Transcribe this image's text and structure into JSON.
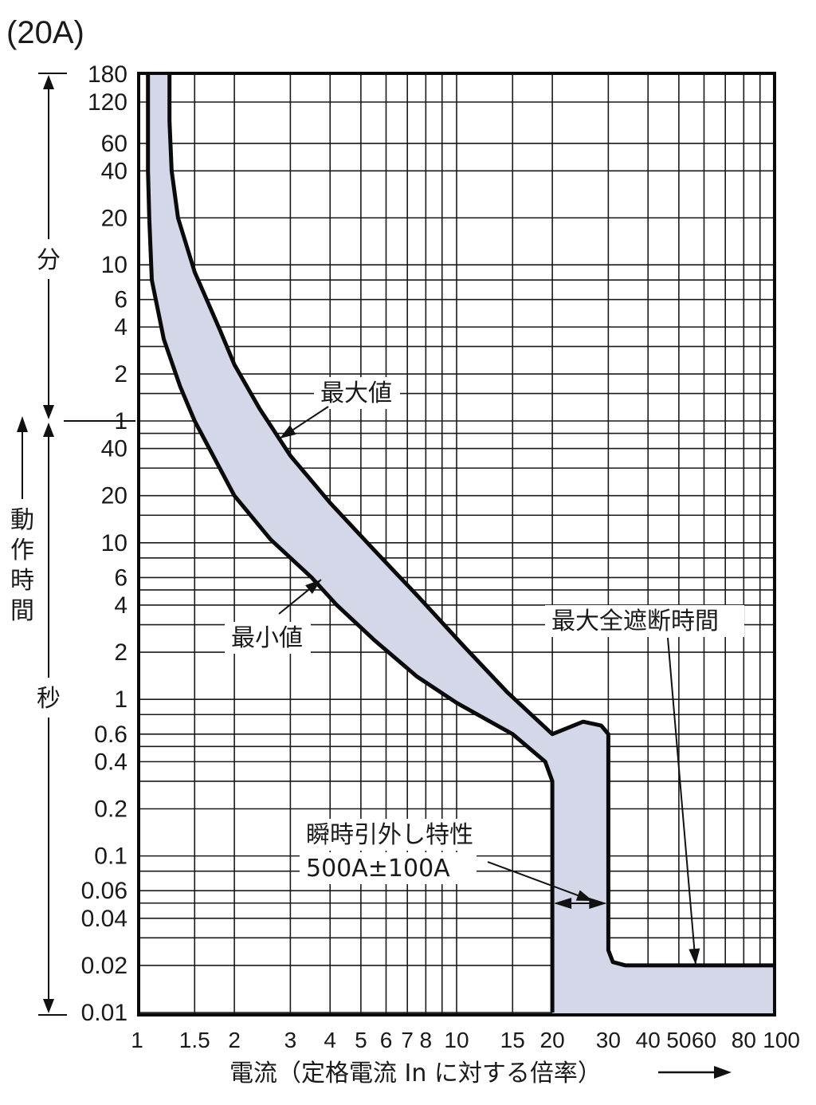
{
  "chart_data": {
    "type": "area",
    "title": "(20A)",
    "xlabel": "電流（定格電流 In に対する倍率）",
    "x_scale": "log",
    "y_scale": "log",
    "xlim": [
      1,
      100
    ],
    "ylim_seconds": [
      0.01,
      10800
    ],
    "x_ticks": [
      {
        "value": 1,
        "label": "1"
      },
      {
        "value": 1.5,
        "label": "1.5"
      },
      {
        "value": 2,
        "label": "2"
      },
      {
        "value": 3,
        "label": "3"
      },
      {
        "value": 4,
        "label": "4"
      },
      {
        "value": 5,
        "label": "5"
      },
      {
        "value": 6,
        "label": "6"
      },
      {
        "value": 7,
        "label": "7"
      },
      {
        "value": 8,
        "label": "8"
      },
      {
        "value": 10,
        "label": "10"
      },
      {
        "value": 15,
        "label": "15"
      },
      {
        "value": 20,
        "label": "20"
      },
      {
        "value": 30,
        "label": "30"
      },
      {
        "value": 40,
        "label": "40"
      },
      {
        "value": 50,
        "label": "50"
      },
      {
        "value": 60,
        "label": "60"
      },
      {
        "value": 80,
        "label": "80"
      },
      {
        "value": 100,
        "label": "100"
      }
    ],
    "y_ticks_minutes": [
      {
        "value": 180,
        "label": "180"
      },
      {
        "value": 120,
        "label": "120"
      },
      {
        "value": 60,
        "label": "60"
      },
      {
        "value": 40,
        "label": "40"
      },
      {
        "value": 20,
        "label": "20"
      },
      {
        "value": 10,
        "label": "10"
      },
      {
        "value": 6,
        "label": "6"
      },
      {
        "value": 4,
        "label": "4"
      },
      {
        "value": 2,
        "label": "2"
      },
      {
        "value": 1,
        "label": "1"
      }
    ],
    "y_ticks_seconds": [
      {
        "value": 40,
        "label": "40"
      },
      {
        "value": 20,
        "label": "20"
      },
      {
        "value": 10,
        "label": "10"
      },
      {
        "value": 6,
        "label": "6"
      },
      {
        "value": 4,
        "label": "4"
      },
      {
        "value": 2,
        "label": "2"
      },
      {
        "value": 1,
        "label": "1"
      },
      {
        "value": 0.6,
        "label": "0.6"
      },
      {
        "value": 0.4,
        "label": "0.4"
      },
      {
        "value": 0.2,
        "label": "0.2"
      },
      {
        "value": 0.1,
        "label": "0.1"
      },
      {
        "value": 0.06,
        "label": "0.06"
      },
      {
        "value": 0.04,
        "label": "0.04"
      },
      {
        "value": 0.02,
        "label": "0.02"
      },
      {
        "value": 0.01,
        "label": "0.01"
      }
    ],
    "y_grid_minutes_extra": [
      8,
      3,
      1.5
    ],
    "y_grid_seconds_extra": [
      50,
      30,
      15,
      8,
      5,
      3,
      0.8,
      0.5,
      0.3,
      0.08,
      0.05,
      0.03
    ],
    "y_axis_unit_labels": {
      "minutes": "分",
      "seconds": "秒",
      "axis_title": "動作時間"
    },
    "series": [
      {
        "name": "最大値",
        "points_seconds": [
          [
            1.25,
            10800
          ],
          [
            1.25,
            5000
          ],
          [
            1.27,
            2400
          ],
          [
            1.33,
            1200
          ],
          [
            1.5,
            540
          ],
          [
            1.8,
            230
          ],
          [
            2.0,
            138
          ],
          [
            2.4,
            72
          ],
          [
            3.0,
            36
          ],
          [
            4.0,
            18
          ],
          [
            5.5,
            9
          ],
          [
            7.6,
            4.5
          ],
          [
            10.5,
            2.2
          ],
          [
            14.5,
            1.1
          ],
          [
            20,
            0.6
          ],
          [
            25,
            0.72
          ],
          [
            28.5,
            0.68
          ],
          [
            30,
            0.6
          ],
          [
            30,
            0.2
          ],
          [
            30,
            0.05
          ],
          [
            30,
            0.025
          ],
          [
            31,
            0.021
          ],
          [
            34,
            0.02
          ],
          [
            100,
            0.02
          ]
        ]
      },
      {
        "name": "最小値",
        "points_seconds": [
          [
            1.07,
            10800
          ],
          [
            1.07,
            5000
          ],
          [
            1.07,
            2400
          ],
          [
            1.08,
            1200
          ],
          [
            1.1,
            480
          ],
          [
            1.2,
            200
          ],
          [
            1.35,
            100
          ],
          [
            1.5,
            60
          ],
          [
            2.0,
            20
          ],
          [
            2.6,
            10.5
          ],
          [
            3.5,
            6
          ],
          [
            4.2,
            4
          ],
          [
            5.5,
            2.4
          ],
          [
            7.5,
            1.4
          ],
          [
            10,
            0.95
          ],
          [
            15,
            0.6
          ],
          [
            19,
            0.4
          ],
          [
            20,
            0.3
          ],
          [
            20,
            0.27
          ],
          [
            20,
            0.01
          ]
        ]
      }
    ],
    "annotations": [
      {
        "text": "最大値"
      },
      {
        "text": "最小値"
      },
      {
        "text": "最大全遮断時間"
      },
      {
        "text": "瞬時引外し特性"
      },
      {
        "text": "500A±100A"
      }
    ],
    "colors": {
      "band_fill": "#d3d7e8",
      "curve": "#0a0a0a",
      "grid": "#1a1a1a"
    }
  }
}
